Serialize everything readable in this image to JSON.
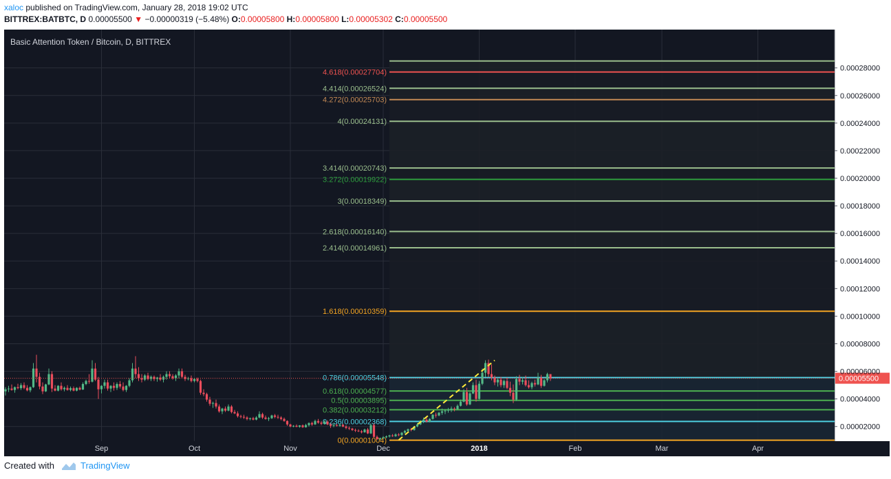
{
  "header": {
    "author": "xaloc",
    "published_text": "published on TradingView.com, January 28, 2018 19:02 UTC",
    "symbol": "BITTREX:BATBTC, D",
    "price": "0.00005500",
    "change": "−0.00000319 (−5.48%)",
    "o_label": "O:",
    "o_value": "0.00005800",
    "h_label": "H:",
    "h_value": "0.00005800",
    "l_label": "L:",
    "l_value": "0.00005302",
    "c_label": "C:",
    "c_value": "0.00005500"
  },
  "footer": {
    "created_with": "Created with",
    "brand": "TradingView"
  },
  "colors": {
    "background": "#131722",
    "up": "#53b987",
    "down": "#eb4d5c",
    "last_price": "#ef5350"
  },
  "chart_data": {
    "type": "candlestick",
    "title": "Basic Attention Token / Bitcoin, D, BITTREX",
    "ylim": [
      0,
      0.0003
    ],
    "y_ticks": [
      2e-05,
      4e-05,
      6e-05,
      8e-05,
      0.0001,
      0.00012,
      0.00014,
      0.00016,
      0.00018,
      0.0002,
      0.00022,
      0.00024,
      0.00026,
      0.00028
    ],
    "y_tick_labels": [
      "0.00002000",
      "0.00004000",
      "0.00006000",
      "0.00008000",
      "0.00010000",
      "0.00012000",
      "0.00014000",
      "0.00016000",
      "0.00018000",
      "0.00020000",
      "0.00022000",
      "0.00024000",
      "0.00026000",
      "0.00028000"
    ],
    "x_labels": [
      "Sep",
      "Oct",
      "Nov",
      "Dec",
      "2018",
      "Feb",
      "Mar",
      "Apr"
    ],
    "x_label_days": [
      31,
      61,
      92,
      122,
      153,
      184,
      212,
      243
    ],
    "last_price": 5.5e-05,
    "last_price_label": "0.00005500",
    "fib_levels": [
      {
        "label": "4.618(0.00027704)",
        "value": 0.00027704,
        "color": "#ef5350"
      },
      {
        "label": "4.414(0.00026524)",
        "value": 0.00026524,
        "color": "#9bbf8d"
      },
      {
        "label": "4.272(0.00025703)",
        "value": 0.00025703,
        "color": "#c48a55"
      },
      {
        "label": "4(0.00024131)",
        "value": 0.00024131,
        "color": "#9bbf8d"
      },
      {
        "label": "3.414(0.00020743)",
        "value": 0.00020743,
        "color": "#9bbf8d"
      },
      {
        "label": "3.272(0.00019922)",
        "value": 0.00019922,
        "color": "#2e9e3e"
      },
      {
        "label": "3(0.00018349)",
        "value": 0.00018349,
        "color": "#9bbf8d"
      },
      {
        "label": "2.618(0.00016140)",
        "value": 0.0001614,
        "color": "#9bbf8d"
      },
      {
        "label": "2.414(0.00014961)",
        "value": 0.00014961,
        "color": "#9bbf8d"
      },
      {
        "label": "1.618(0.00010359)",
        "value": 0.00010359,
        "color": "#f5a623"
      },
      {
        "label": "0.786(0.00005548)",
        "value": 5.548e-05,
        "color": "#4dd0e1"
      },
      {
        "label": "0.618(0.00004577)",
        "value": 4.577e-05,
        "color": "#4caf50"
      },
      {
        "label": "0.5(0.00003895)",
        "value": 3.895e-05,
        "color": "#4caf50"
      },
      {
        "label": "0.382(0.00003212)",
        "value": 3.212e-05,
        "color": "#4caf50"
      },
      {
        "label": "0.236(0.00002368)",
        "value": 2.368e-05,
        "color": "#4dd0e1"
      },
      {
        "label": "0(0.00001004)",
        "value": 1.004e-05,
        "color": "#f5a623"
      }
    ],
    "fib_unlabeled_top": {
      "value": 0.000285,
      "color": "#9bbf8d"
    },
    "fib_start_day": 124,
    "fib_end_day": 300,
    "trend_line": {
      "from": [
        127,
        1.02e-05
      ],
      "to": [
        158,
        6.8e-05
      ]
    },
    "ohlc_start_day": 0,
    "ohlc": [
      [
        4.55e-05,
        4.85e-05,
        4.25e-05,
        4.7e-05
      ],
      [
        4.7e-05,
        4.95e-05,
        4.5e-05,
        4.75e-05
      ],
      [
        4.75e-05,
        5.05e-05,
        4.6e-05,
        4.65e-05
      ],
      [
        4.65e-05,
        4.9e-05,
        4.45e-05,
        4.85e-05
      ],
      [
        4.85e-05,
        5.1e-05,
        4.7e-05,
        4.78e-05
      ],
      [
        4.78e-05,
        5.15e-05,
        4.65e-05,
        5e-05
      ],
      [
        5e-05,
        5.2e-05,
        4.7e-05,
        4.8e-05
      ],
      [
        4.8e-05,
        5e-05,
        4.55e-05,
        4.62e-05
      ],
      [
        4.62e-05,
        4.9e-05,
        4.48e-05,
        4.85e-05
      ],
      [
        4.85e-05,
        6.6e-05,
        4.8e-05,
        6.2e-05
      ],
      [
        6.2e-05,
        7.2e-05,
        5.2e-05,
        5.6e-05
      ],
      [
        5.6e-05,
        5.9e-05,
        4.7e-05,
        4.9e-05
      ],
      [
        4.9e-05,
        5.2e-05,
        4.35e-05,
        4.55e-05
      ],
      [
        4.55e-05,
        5.1e-05,
        4.5e-05,
        5.05e-05
      ],
      [
        5.05e-05,
        6.2e-05,
        5e-05,
        5.8e-05
      ],
      [
        5.8e-05,
        6e-05,
        4.5e-05,
        4.75e-05
      ],
      [
        4.75e-05,
        5e-05,
        4.55e-05,
        4.6e-05
      ],
      [
        4.6e-05,
        5e-05,
        4.55e-05,
        4.95e-05
      ],
      [
        4.95e-05,
        5.2e-05,
        4.6e-05,
        4.7e-05
      ],
      [
        4.7e-05,
        4.9e-05,
        4.55e-05,
        4.8e-05
      ],
      [
        4.8e-05,
        5e-05,
        4.6e-05,
        4.65e-05
      ],
      [
        4.65e-05,
        4.9e-05,
        4.55e-05,
        4.78e-05
      ],
      [
        4.78e-05,
        4.9e-05,
        4.55e-05,
        4.6e-05
      ],
      [
        4.6e-05,
        4.85e-05,
        4.55e-05,
        4.8e-05
      ],
      [
        4.8e-05,
        4.9e-05,
        4.62e-05,
        4.68e-05
      ],
      [
        4.68e-05,
        5.2e-05,
        4.65e-05,
        5.08e-05
      ],
      [
        5.08e-05,
        5.4e-05,
        5e-05,
        5.3e-05
      ],
      [
        5.3e-05,
        5.8e-05,
        5.1e-05,
        5.25e-05
      ],
      [
        5.25e-05,
        6.8e-05,
        5.2e-05,
        6.2e-05
      ],
      [
        6.2e-05,
        6.6e-05,
        5.3e-05,
        5.4e-05
      ],
      [
        5.4e-05,
        5.6e-05,
        4e-05,
        4.7e-05
      ],
      [
        4.7e-05,
        5e-05,
        4.4e-05,
        4.95e-05
      ],
      [
        4.95e-05,
        5.4e-05,
        4.75e-05,
        5.2e-05
      ],
      [
        5.2e-05,
        5.4e-05,
        4.6e-05,
        4.75e-05
      ],
      [
        4.75e-05,
        5e-05,
        4.5e-05,
        4.95e-05
      ],
      [
        4.95e-05,
        5.2e-05,
        4.6e-05,
        4.8e-05
      ],
      [
        4.8e-05,
        5.2e-05,
        4.65e-05,
        5.08e-05
      ],
      [
        5.08e-05,
        5.3e-05,
        4.75e-05,
        4.9e-05
      ],
      [
        4.9e-05,
        5.2e-05,
        4.55e-05,
        4.65e-05
      ],
      [
        4.65e-05,
        5e-05,
        4.5e-05,
        4.95e-05
      ],
      [
        4.95e-05,
        5.5e-05,
        4.85e-05,
        5.35e-05
      ],
      [
        5.35e-05,
        6.6e-05,
        5.2e-05,
        6.2e-05
      ],
      [
        6.2e-05,
        7.1e-05,
        5.5e-05,
        5.8e-05
      ],
      [
        5.8e-05,
        6.3e-05,
        5.3e-05,
        5.5e-05
      ],
      [
        5.5e-05,
        5.8e-05,
        5.2e-05,
        5.4e-05
      ],
      [
        5.4e-05,
        5.8e-05,
        5.3e-05,
        5.7e-05
      ],
      [
        5.7e-05,
        5.9e-05,
        5.35e-05,
        5.45e-05
      ],
      [
        5.45e-05,
        5.7e-05,
        5.3e-05,
        5.6e-05
      ],
      [
        5.6e-05,
        5.7e-05,
        5.3e-05,
        5.45e-05
      ],
      [
        5.45e-05,
        5.6e-05,
        5.25e-05,
        5.55e-05
      ],
      [
        5.55e-05,
        5.8e-05,
        5.3e-05,
        5.4e-05
      ],
      [
        5.4e-05,
        5.7e-05,
        5.2e-05,
        5.6e-05
      ],
      [
        5.6e-05,
        6e-05,
        5.4e-05,
        5.8e-05
      ],
      [
        5.8e-05,
        6e-05,
        5.5e-05,
        5.65e-05
      ],
      [
        5.65e-05,
        5.8e-05,
        5.4e-05,
        5.5e-05
      ],
      [
        5.5e-05,
        5.8e-05,
        5.3e-05,
        5.7e-05
      ],
      [
        5.7e-05,
        6.2e-05,
        5.5e-05,
        6e-05
      ],
      [
        6e-05,
        6.2e-05,
        5.5e-05,
        5.6e-05
      ],
      [
        5.6e-05,
        5.75e-05,
        5.3e-05,
        5.45e-05
      ],
      [
        5.45e-05,
        5.6e-05,
        5.35e-05,
        5.5e-05
      ],
      [
        5.5e-05,
        5.7e-05,
        5.2e-05,
        5.3e-05
      ],
      [
        5.3e-05,
        5.5e-05,
        5.2e-05,
        5.45e-05
      ],
      [
        5.45e-05,
        5.55e-05,
        5.2e-05,
        5.3e-05
      ],
      [
        5.3e-05,
        5.4e-05,
        4.3e-05,
        4.45e-05
      ],
      [
        4.45e-05,
        4.7e-05,
        4.2e-05,
        4.35e-05
      ],
      [
        4.35e-05,
        4.45e-05,
        3.8e-05,
        3.95e-05
      ],
      [
        3.95e-05,
        4.15e-05,
        3.5e-05,
        3.65e-05
      ],
      [
        3.65e-05,
        3.8e-05,
        3.35e-05,
        3.7e-05
      ],
      [
        3.7e-05,
        3.95e-05,
        3.3e-05,
        3.45e-05
      ],
      [
        3.45e-05,
        3.6e-05,
        3e-05,
        3.1e-05
      ],
      [
        3.1e-05,
        3.35e-05,
        2.9e-05,
        3.3e-05
      ],
      [
        3.3e-05,
        3.45e-05,
        3.05e-05,
        3.15e-05
      ],
      [
        3.15e-05,
        3.6e-05,
        3.1e-05,
        3.45e-05
      ],
      [
        3.45e-05,
        3.55e-05,
        2.95e-05,
        3.05e-05
      ],
      [
        3.05e-05,
        3.2e-05,
        2.9e-05,
        2.95e-05
      ],
      [
        2.95e-05,
        3.1e-05,
        2.65e-05,
        2.75e-05
      ],
      [
        2.75e-05,
        2.85e-05,
        2.6e-05,
        2.7e-05
      ],
      [
        2.7e-05,
        2.85e-05,
        2.55e-05,
        2.65e-05
      ],
      [
        2.65e-05,
        2.75e-05,
        2.45e-05,
        2.55e-05
      ],
      [
        2.55e-05,
        2.65e-05,
        2.45e-05,
        2.6e-05
      ],
      [
        2.6e-05,
        2.7e-05,
        2.45e-05,
        2.5e-05
      ],
      [
        2.5e-05,
        2.75e-05,
        2.45e-05,
        2.65e-05
      ],
      [
        2.65e-05,
        3.1e-05,
        2.6e-05,
        2.9e-05
      ],
      [
        2.9e-05,
        3e-05,
        2.55e-05,
        2.65e-05
      ],
      [
        2.65e-05,
        2.8e-05,
        2.5e-05,
        2.55e-05
      ],
      [
        2.55e-05,
        2.7e-05,
        2.4e-05,
        2.6e-05
      ],
      [
        2.6e-05,
        2.85e-05,
        2.55e-05,
        2.8e-05
      ],
      [
        2.8e-05,
        2.9e-05,
        2.6e-05,
        2.7e-05
      ],
      [
        2.7e-05,
        2.85e-05,
        2.55e-05,
        2.65e-05
      ],
      [
        2.65e-05,
        2.75e-05,
        2.45e-05,
        2.55e-05
      ],
      [
        2.55e-05,
        2.65e-05,
        2.35e-05,
        2.4e-05
      ],
      [
        2.4e-05,
        2.45e-05,
        2.05e-05,
        2.15e-05
      ],
      [
        2.15e-05,
        2.2e-05,
        1.95e-05,
        2e-05
      ],
      [
        2e-05,
        2.1e-05,
        1.95e-05,
        2.05e-05
      ],
      [
        2.05e-05,
        2.15e-05,
        1.95e-05,
        1.98e-05
      ],
      [
        1.98e-05,
        2.1e-05,
        1.92e-05,
        2.08e-05
      ],
      [
        2.08e-05,
        2.15e-05,
        1.9e-05,
        1.95e-05
      ],
      [
        1.95e-05,
        2.2e-05,
        1.92e-05,
        2.1e-05
      ],
      [
        2.1e-05,
        2.3e-05,
        2e-05,
        2.25e-05
      ],
      [
        2.25e-05,
        2.35e-05,
        2.05e-05,
        2.15e-05
      ],
      [
        2.15e-05,
        2.5e-05,
        2.12e-05,
        2.4e-05
      ],
      [
        2.4e-05,
        2.55e-05,
        2.2e-05,
        2.28e-05
      ],
      [
        2.28e-05,
        2.4e-05,
        2.1e-05,
        2.2e-05
      ],
      [
        2.2e-05,
        2.45e-05,
        2.15e-05,
        2.35e-05
      ],
      [
        2.35e-05,
        2.45e-05,
        2.1e-05,
        2.15e-05
      ],
      [
        2.15e-05,
        2.25e-05,
        1.9e-05,
        2.05e-05
      ],
      [
        2.05e-05,
        2.25e-05,
        1.95e-05,
        2.1e-05
      ],
      [
        2.1e-05,
        2.2e-05,
        2e-05,
        2.05e-05
      ],
      [
        2.05e-05,
        2.2e-05,
        1.98e-05,
        2.12e-05
      ],
      [
        2.12e-05,
        2.2e-05,
        1.95e-05,
        2e-05
      ],
      [
        2e-05,
        2.1e-05,
        1.8e-05,
        1.9e-05
      ],
      [
        1.9e-05,
        2e-05,
        1.75e-05,
        1.85e-05
      ],
      [
        1.85e-05,
        1.9e-05,
        1.68e-05,
        1.75e-05
      ],
      [
        1.75e-05,
        1.85e-05,
        1.6e-05,
        1.7e-05
      ],
      [
        1.7e-05,
        1.8e-05,
        1.6e-05,
        1.65e-05
      ],
      [
        1.65e-05,
        1.75e-05,
        1.5e-05,
        1.58e-05
      ],
      [
        1.58e-05,
        1.85e-05,
        1.55e-05,
        1.78e-05
      ],
      [
        1.78e-05,
        1.9e-05,
        1.45e-05,
        1.5e-05
      ],
      [
        1.5e-05,
        2.2e-05,
        1.45e-05,
        2.1e-05
      ],
      [
        2.1e-05,
        2.25e-05,
        1.2e-05,
        1.25e-05
      ],
      [
        1.25e-05,
        1.35e-05,
        1.05e-05,
        1.08e-05
      ],
      [
        1.08e-05,
        1.2e-05,
        1.02e-05,
        1.15e-05
      ],
      [
        1.15e-05,
        1.3e-05,
        1.1e-05,
        1.22e-05
      ],
      [
        1.22e-05,
        1.35e-05,
        1.15e-05,
        1.28e-05
      ],
      [
        1.28e-05,
        1.4e-05,
        1.2e-05,
        1.35e-05
      ],
      [
        1.35e-05,
        1.45e-05,
        1.25e-05,
        1.3e-05
      ],
      [
        1.3e-05,
        1.5e-05,
        1.25e-05,
        1.42e-05
      ],
      [
        1.42e-05,
        1.52e-05,
        1.3e-05,
        1.38e-05
      ],
      [
        1.38e-05,
        1.6e-05,
        1.32e-05,
        1.55e-05
      ],
      [
        1.55e-05,
        1.75e-05,
        1.5e-05,
        1.68e-05
      ],
      [
        1.68e-05,
        1.85e-05,
        1.6e-05,
        1.8e-05
      ],
      [
        1.8e-05,
        1.9e-05,
        1.65e-05,
        1.75e-05
      ],
      [
        1.75e-05,
        2.05e-05,
        1.7e-05,
        2e-05
      ],
      [
        2e-05,
        2.25e-05,
        1.95e-05,
        2.15e-05
      ],
      [
        2.15e-05,
        2.45e-05,
        2.1e-05,
        2.4e-05
      ],
      [
        2.4e-05,
        2.65e-05,
        2.25e-05,
        2.5e-05
      ],
      [
        2.5e-05,
        2.7e-05,
        2.3e-05,
        2.35e-05
      ],
      [
        2.35e-05,
        2.6e-05,
        2.3e-05,
        2.55e-05
      ],
      [
        2.55e-05,
        2.9e-05,
        2.5e-05,
        2.85e-05
      ],
      [
        2.85e-05,
        3e-05,
        2.65e-05,
        2.8e-05
      ],
      [
        2.8e-05,
        3.05e-05,
        2.75e-05,
        3e-05
      ],
      [
        3e-05,
        3.3e-05,
        2.85e-05,
        3.1e-05
      ],
      [
        3.1e-05,
        3.25e-05,
        2.9e-05,
        3.15e-05
      ],
      [
        3.15e-05,
        3.35e-05,
        3e-05,
        3.2e-05
      ],
      [
        3.2e-05,
        3.45e-05,
        3.05e-05,
        3.3e-05
      ],
      [
        3.3e-05,
        3.4e-05,
        3.1e-05,
        3.25e-05
      ],
      [
        3.25e-05,
        3.6e-05,
        3.2e-05,
        3.5e-05
      ],
      [
        3.5e-05,
        3.95e-05,
        3.45e-05,
        3.8e-05
      ],
      [
        3.8e-05,
        4.7e-05,
        3.75e-05,
        4.5e-05
      ],
      [
        4.5e-05,
        4.8e-05,
        3.5e-05,
        3.6e-05
      ],
      [
        3.6e-05,
        4.5e-05,
        3.55e-05,
        4.4e-05
      ],
      [
        4.4e-05,
        5.2e-05,
        4.35e-05,
        5e-05
      ],
      [
        5e-05,
        5.4e-05,
        3.8e-05,
        4e-05
      ],
      [
        4e-05,
        5.3e-05,
        3.95e-05,
        5.1e-05
      ],
      [
        5.1e-05,
        6.2e-05,
        5e-05,
        5.9e-05
      ],
      [
        5.9e-05,
        6.8e-05,
        5.6e-05,
        6.6e-05
      ],
      [
        6.6e-05,
        6.85e-05,
        5.6e-05,
        5.8e-05
      ],
      [
        5.8e-05,
        6.5e-05,
        5.35e-05,
        5.55e-05
      ],
      [
        5.55e-05,
        5.7e-05,
        5e-05,
        5.2e-05
      ],
      [
        5.2e-05,
        5.55e-05,
        4.9e-05,
        5.4e-05
      ],
      [
        5.4e-05,
        5.6e-05,
        4.85e-05,
        5e-05
      ],
      [
        5e-05,
        5.4e-05,
        4.8e-05,
        5.3e-05
      ],
      [
        5.3e-05,
        5.55e-05,
        4.7e-05,
        4.8e-05
      ],
      [
        4.8e-05,
        5.25e-05,
        4.2e-05,
        4.45e-05
      ],
      [
        4.45e-05,
        5.05e-05,
        3.7e-05,
        3.95e-05
      ],
      [
        3.95e-05,
        5.65e-05,
        3.85e-05,
        5.45e-05
      ],
      [
        5.45e-05,
        5.75e-05,
        5e-05,
        5.25e-05
      ],
      [
        5.25e-05,
        5.6e-05,
        5.05e-05,
        5.35e-05
      ],
      [
        5.35e-05,
        5.7e-05,
        4.9e-05,
        5e-05
      ],
      [
        5e-05,
        5.35e-05,
        4.75e-05,
        4.85e-05
      ],
      [
        4.85e-05,
        5.25e-05,
        4.7e-05,
        5.15e-05
      ],
      [
        5.15e-05,
        5.4e-05,
        4.9e-05,
        5.05e-05
      ],
      [
        5.05e-05,
        5.9e-05,
        5e-05,
        5.55e-05
      ],
      [
        5.55e-05,
        5.75e-05,
        4.8e-05,
        4.95e-05
      ],
      [
        4.95e-05,
        5.45e-05,
        4.9e-05,
        5.35e-05
      ],
      [
        5.35e-05,
        5.9e-05,
        5.2e-05,
        5.8e-05
      ],
      [
        5.8e-05,
        5.8e-05,
        5.302e-05,
        5.5e-05
      ]
    ]
  }
}
